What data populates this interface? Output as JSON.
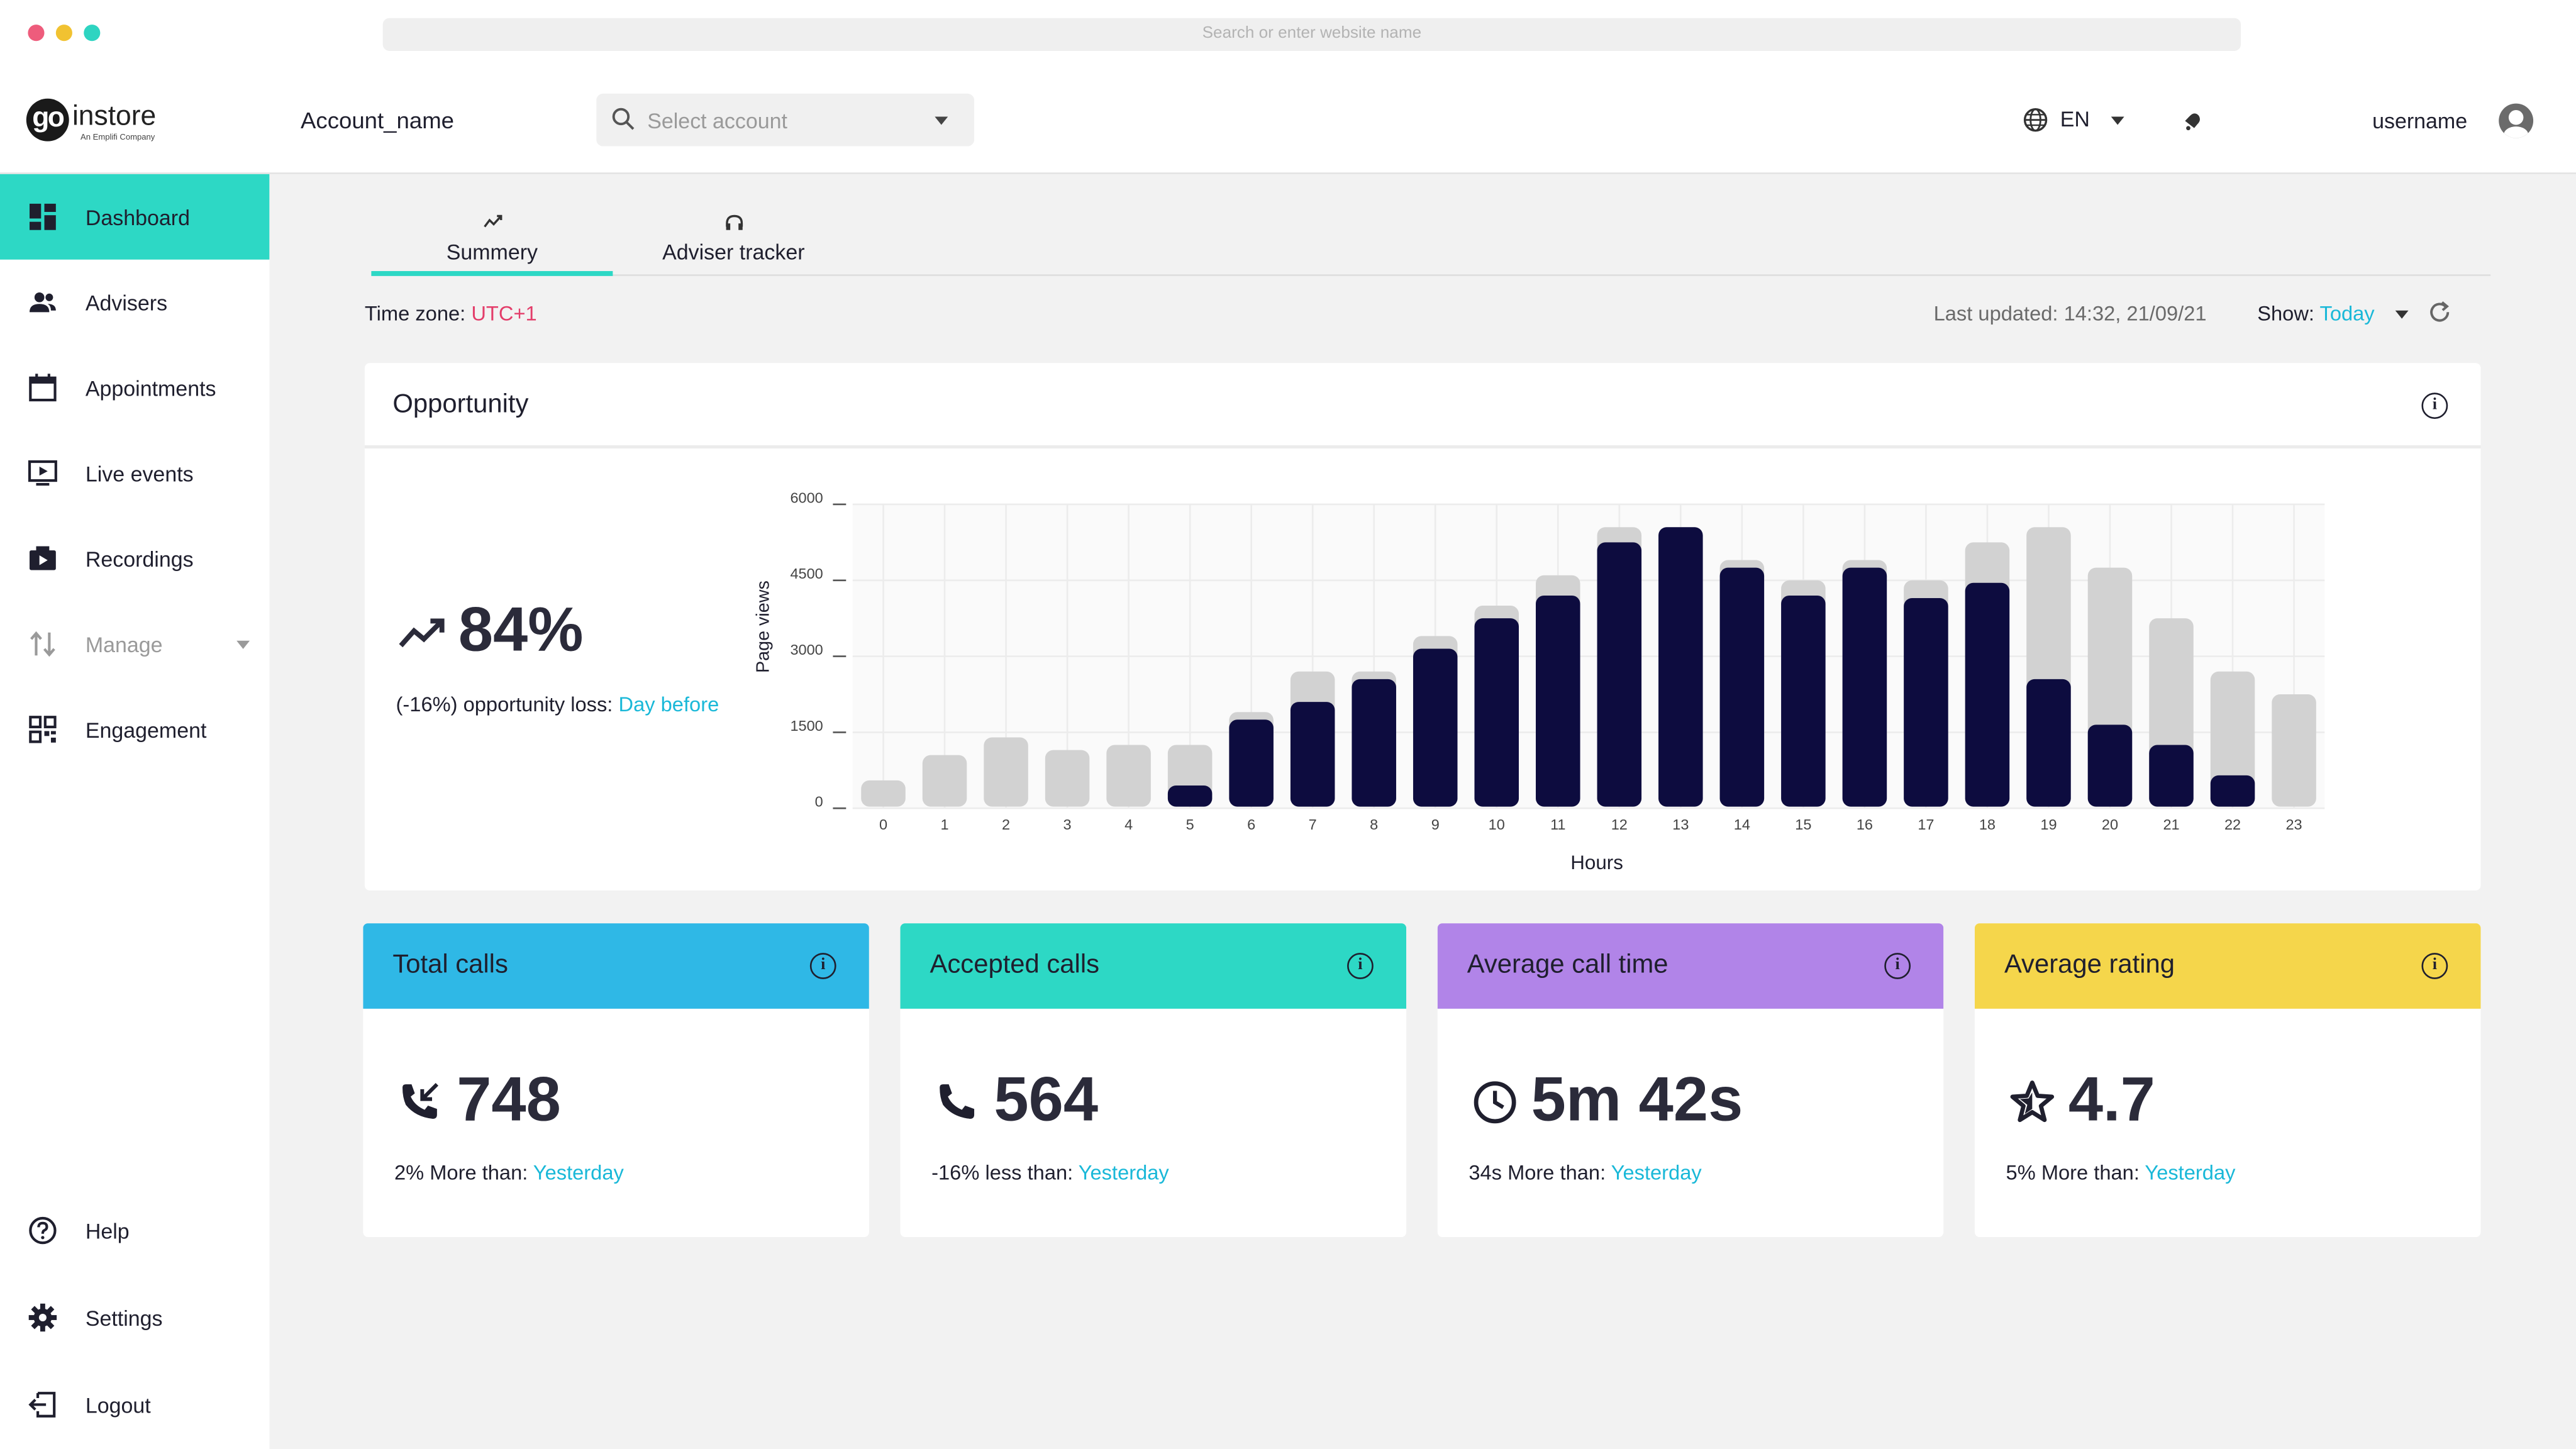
{
  "browser": {
    "url_placeholder": "Search or enter website name"
  },
  "header": {
    "logo_text": "instore",
    "logo_mark": "go",
    "logo_subtitle": "An Emplifi Company",
    "account_name": "Account_name",
    "select_account_placeholder": "Select account",
    "language": "EN",
    "username": "username"
  },
  "sidebar": {
    "items": [
      {
        "label": "Dashboard",
        "icon": "dashboard-icon"
      },
      {
        "label": "Advisers",
        "icon": "people-icon"
      },
      {
        "label": "Appointments",
        "icon": "calendar-icon"
      },
      {
        "label": "Live events",
        "icon": "live-icon"
      },
      {
        "label": "Recordings",
        "icon": "recordings-icon"
      },
      {
        "label": "Manage",
        "icon": "manage-icon"
      },
      {
        "label": "Engagement",
        "icon": "qr-icon"
      }
    ],
    "footer": [
      {
        "label": "Help",
        "icon": "help-icon"
      },
      {
        "label": "Settings",
        "icon": "gear-icon"
      },
      {
        "label": "Logout",
        "icon": "logout-icon"
      }
    ]
  },
  "tabs": [
    {
      "label": "Summery"
    },
    {
      "label": "Adviser tracker"
    }
  ],
  "status": {
    "timezone_label": "Time zone:",
    "timezone_value": "UTC+1",
    "last_updated": "Last updated: 14:32, 21/09/21",
    "show_label": "Show:",
    "show_value": "Today"
  },
  "opportunity": {
    "title": "Opportunity",
    "value": "84%",
    "note_prefix": "(-16%) opportunity loss:",
    "note_link": "Day before"
  },
  "chart_data": {
    "type": "bar",
    "xlabel": "Hours",
    "ylabel": "Page views",
    "ylim": [
      0,
      6000
    ],
    "yticks": [
      0,
      1500,
      3000,
      4500,
      6000
    ],
    "categories": [
      "0",
      "1",
      "2",
      "3",
      "4",
      "5",
      "6",
      "7",
      "8",
      "9",
      "10",
      "11",
      "12",
      "13",
      "14",
      "15",
      "16",
      "17",
      "18",
      "19",
      "20",
      "21",
      "22",
      "23"
    ],
    "series": [
      {
        "name": "",
        "color": "#d2d2d2",
        "values": [
          550,
          1050,
          1400,
          1150,
          1250,
          1250,
          1900,
          2700,
          2700,
          3400,
          4000,
          4600,
          5550,
          5550,
          4900,
          4500,
          4900,
          4500,
          5250,
          5550,
          4750,
          3750,
          2700,
          2250
        ]
      },
      {
        "name": "",
        "color": "#0d0c3f",
        "values": [
          0,
          0,
          0,
          0,
          0,
          450,
          1750,
          2100,
          2550,
          3150,
          3750,
          4200,
          5250,
          5550,
          4750,
          4200,
          4750,
          4150,
          4450,
          2550,
          1650,
          1250,
          650,
          0
        ]
      }
    ],
    "grid": true
  },
  "kpis": [
    {
      "title": "Total calls",
      "value": "748",
      "note_prefix": "2% More than:",
      "note_link": "Yesterday",
      "color": "#2fb8e6",
      "icon": "incoming-call-icon"
    },
    {
      "title": "Accepted calls",
      "value": "564",
      "note_prefix": "-16% less than:",
      "note_link": "Yesterday",
      "color": "#2dd8c5",
      "icon": "phone-icon"
    },
    {
      "title": "Average call time",
      "value": "5m 42s",
      "note_prefix": "34s More than:",
      "note_link": "Yesterday",
      "color": "#b184e8",
      "icon": "clock-icon"
    },
    {
      "title": "Average rating",
      "value": "4.7",
      "note_prefix": "5% More than:",
      "note_link": "Yesterday",
      "color": "#f5d64b",
      "icon": "star-icon"
    }
  ]
}
